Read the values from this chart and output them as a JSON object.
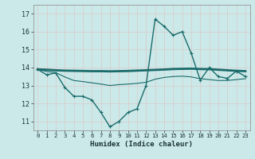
{
  "xlabel": "Humidex (Indice chaleur)",
  "ylabel": "",
  "background_color": "#cce9e9",
  "grid_color": "#e8f4f4",
  "line_color": "#1a6b6b",
  "xlim": [
    -0.5,
    23.5
  ],
  "ylim": [
    10.5,
    17.5
  ],
  "yticks": [
    11,
    12,
    13,
    14,
    15,
    16,
    17
  ],
  "xticks": [
    0,
    1,
    2,
    3,
    4,
    5,
    6,
    7,
    8,
    9,
    10,
    11,
    12,
    13,
    14,
    15,
    16,
    17,
    18,
    19,
    20,
    21,
    22,
    23
  ],
  "series1_x": [
    0,
    1,
    2,
    3,
    4,
    5,
    6,
    7,
    8,
    9,
    10,
    11,
    12,
    13,
    14,
    15,
    16,
    17,
    18,
    19,
    20,
    21,
    22,
    23
  ],
  "series1_y": [
    13.9,
    13.6,
    13.7,
    12.9,
    12.4,
    12.4,
    12.2,
    11.5,
    10.7,
    11.0,
    11.5,
    11.7,
    13.0,
    16.7,
    16.3,
    15.8,
    16.0,
    14.8,
    13.3,
    14.0,
    13.5,
    13.4,
    13.8,
    13.5
  ],
  "series2_x": [
    0,
    1,
    2,
    3,
    4,
    5,
    6,
    7,
    8,
    9,
    10,
    11,
    12,
    13,
    14,
    15,
    16,
    17,
    18,
    19,
    20,
    21,
    22,
    23
  ],
  "series2_y": [
    13.9,
    13.88,
    13.85,
    13.83,
    13.82,
    13.81,
    13.8,
    13.8,
    13.79,
    13.8,
    13.81,
    13.83,
    13.85,
    13.87,
    13.89,
    13.92,
    13.93,
    13.94,
    13.92,
    13.91,
    13.88,
    13.85,
    13.82,
    13.8
  ],
  "series3_x": [
    0,
    1,
    2,
    3,
    4,
    5,
    6,
    7,
    8,
    9,
    10,
    11,
    12,
    13,
    14,
    15,
    16,
    17,
    18,
    19,
    20,
    21,
    22,
    23
  ],
  "series3_y": [
    13.9,
    13.78,
    13.72,
    13.48,
    13.28,
    13.22,
    13.15,
    13.08,
    13.0,
    13.05,
    13.08,
    13.12,
    13.18,
    13.35,
    13.45,
    13.5,
    13.52,
    13.48,
    13.38,
    13.33,
    13.28,
    13.28,
    13.33,
    13.38
  ]
}
